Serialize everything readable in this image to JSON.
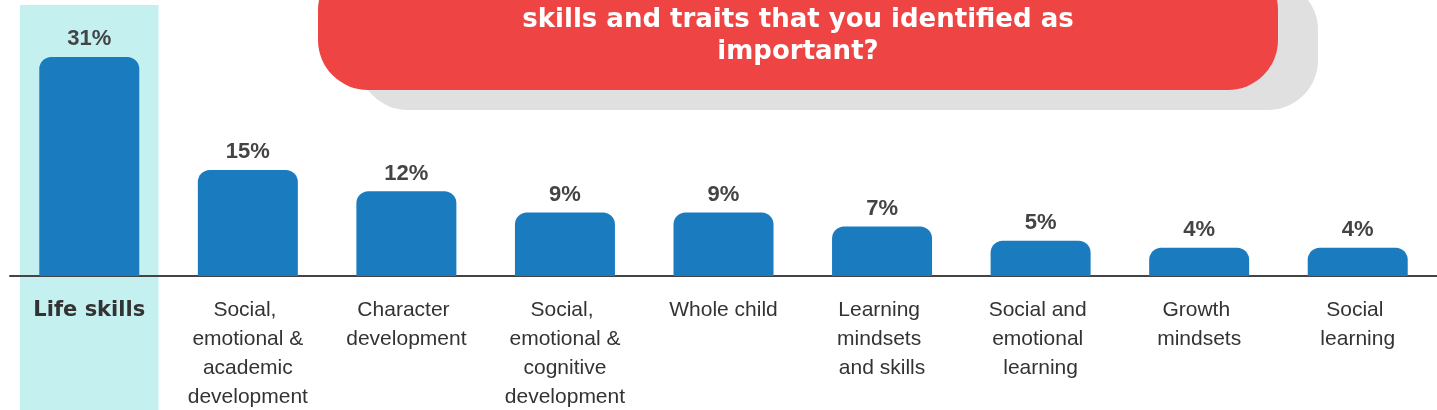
{
  "chart_data": {
    "type": "bar",
    "title": "skills and traits that you identified as important?",
    "categories": [
      "Life skills",
      "Social, emotional & academic development",
      "Character development",
      "Social, emotional & cognitive development",
      "Whole child",
      "Learning mindsets and skills",
      "Social and emotional learning",
      "Growth mindsets",
      "Social learning"
    ],
    "values": [
      31,
      15,
      12,
      9,
      9,
      7,
      5,
      4,
      4
    ],
    "value_labels": [
      "31%",
      "15%",
      "12%",
      "9%",
      "9%",
      "7%",
      "5%",
      "4%",
      "4%"
    ],
    "color": "#1a7bbf",
    "bands": [
      {
        "axis": "x",
        "from": "Life skills",
        "to": "Life skills",
        "color": "#c4f0f0"
      }
    ],
    "grid": false
  }
}
